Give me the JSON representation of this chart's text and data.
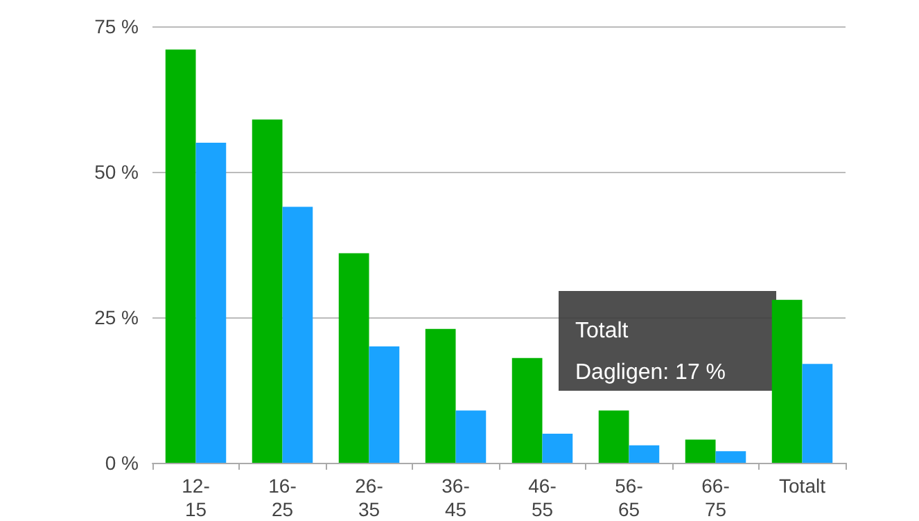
{
  "chart_data": {
    "type": "bar",
    "categories": [
      "12-15",
      "16-25",
      "26-35",
      "36-45",
      "46-55",
      "56-65",
      "66-75",
      "Totalt"
    ],
    "series": [
      {
        "color": "#00b300",
        "values": [
          71,
          59,
          36,
          23,
          18,
          9,
          4,
          28
        ]
      },
      {
        "color": "#1aa3ff",
        "values": [
          55,
          44,
          20,
          9,
          5,
          3,
          2,
          17
        ]
      }
    ],
    "ylim": [
      0,
      75
    ],
    "yticks": [
      {
        "value": 0,
        "label": "0 %"
      },
      {
        "value": 25,
        "label": "25 %"
      },
      {
        "value": 50,
        "label": "50 %"
      },
      {
        "value": 75,
        "label": "75 %"
      }
    ],
    "grid": "y",
    "annotations": [
      "Totalt\nDagligen: 17 %"
    ]
  }
}
